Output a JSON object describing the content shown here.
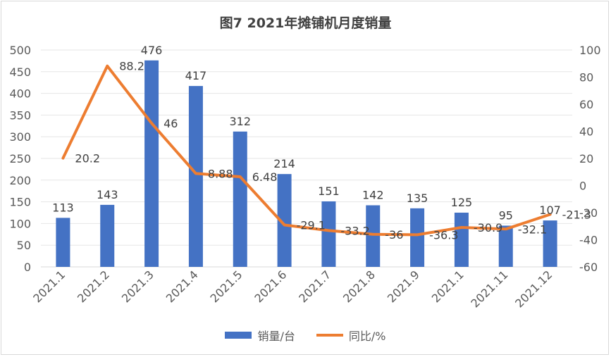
{
  "chart_data": {
    "type": "bar",
    "title": "图7  2021年摊铺机月度销量",
    "categories": [
      "2021.1",
      "2021.2",
      "2021.3",
      "2021.4",
      "2021.5",
      "2021.6",
      "2021.7",
      "2021.8",
      "2021.9",
      "2021.1",
      "2021.11",
      "2021.12"
    ],
    "series": [
      {
        "name": "销量/台",
        "type": "bar",
        "axis": "left",
        "color": "#4472c4",
        "values": [
          113,
          143,
          476,
          417,
          312,
          214,
          151,
          142,
          135,
          125,
          95,
          107
        ]
      },
      {
        "name": "同比/%",
        "type": "line",
        "axis": "right",
        "color": "#ed7d31",
        "values": [
          20.2,
          88.2,
          46,
          8.88,
          6.48,
          -29.1,
          -33.2,
          -36,
          -36.3,
          -30.9,
          -32.1,
          -21.3
        ]
      }
    ],
    "left_axis": {
      "min": 0,
      "max": 500,
      "step": 50,
      "ticks": [
        "0",
        "50",
        "100",
        "150",
        "200",
        "250",
        "300",
        "350",
        "400",
        "450",
        "500"
      ]
    },
    "right_axis": {
      "min": -60,
      "max": 100,
      "step": 20,
      "ticks": [
        "-60",
        "-40",
        "-20",
        "0",
        "20",
        "40",
        "60",
        "80",
        "100"
      ]
    },
    "bar_labels": [
      "113",
      "143",
      "476",
      "417",
      "312",
      "214",
      "151",
      "142",
      "135",
      "125",
      "95",
      "107"
    ],
    "line_labels": [
      "20.2",
      "88.2",
      "46",
      "8.88",
      "6.48",
      "-29.1",
      "-33.2",
      "-36",
      "-36.3",
      "-30.9",
      "-32.1",
      "-21.3"
    ],
    "grid": true,
    "legend": "bottom"
  }
}
